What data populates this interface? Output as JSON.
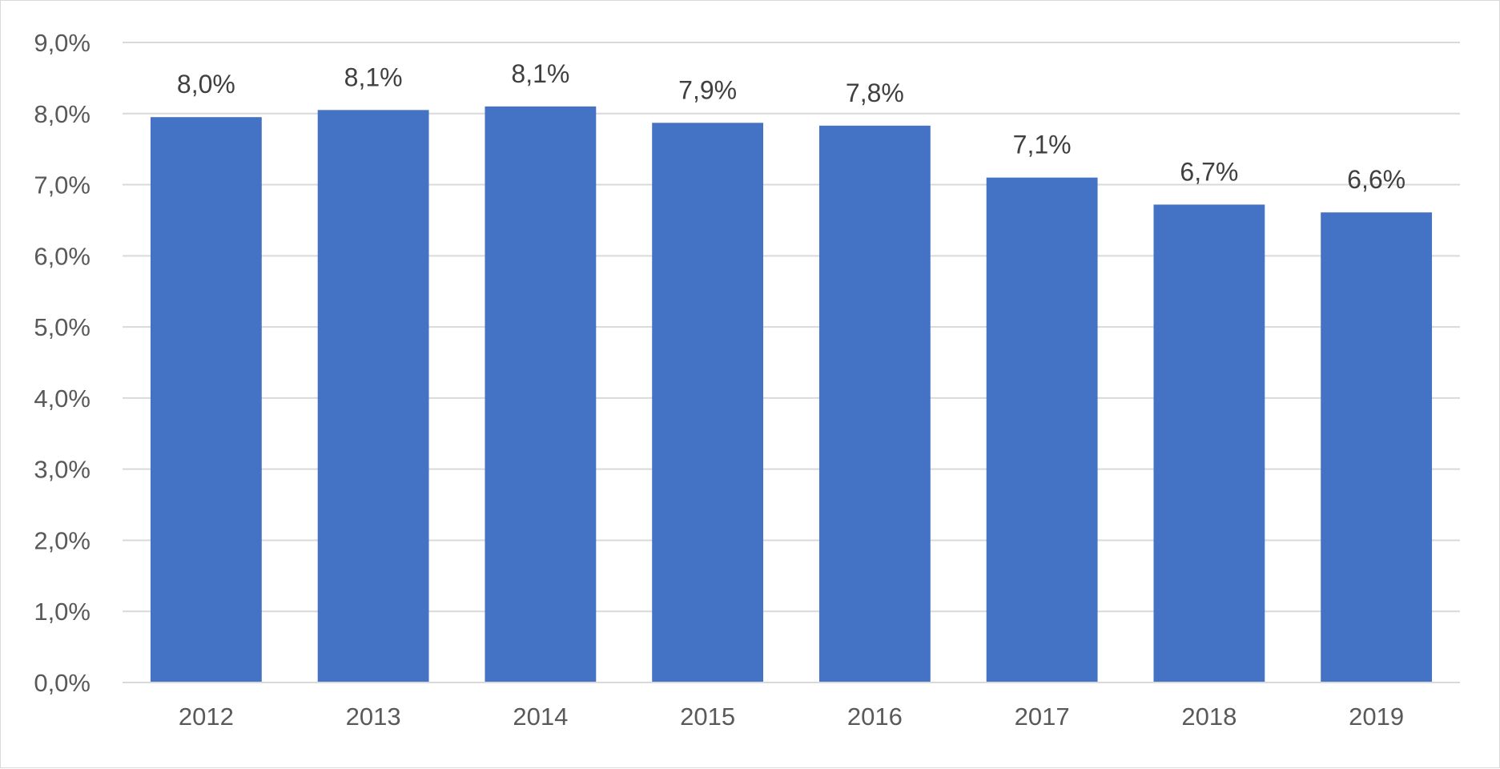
{
  "chart_data": {
    "type": "bar",
    "title": "",
    "xlabel": "",
    "ylabel": "",
    "categories": [
      "2012",
      "2013",
      "2014",
      "2015",
      "2016",
      "2017",
      "2018",
      "2019"
    ],
    "values": [
      7.95,
      8.05,
      8.1,
      7.87,
      7.83,
      7.1,
      6.72,
      6.61
    ],
    "data_labels": [
      "8,0%",
      "8,1%",
      "8,1%",
      "7,9%",
      "7,8%",
      "7,1%",
      "6,7%",
      "6,6%"
    ],
    "ylim": [
      0,
      9
    ],
    "yticks": [
      0,
      1,
      2,
      3,
      4,
      5,
      6,
      7,
      8,
      9
    ],
    "ytick_labels": [
      "0,0%",
      "1,0%",
      "2,0%",
      "3,0%",
      "4,0%",
      "5,0%",
      "6,0%",
      "7,0%",
      "8,0%",
      "9,0%"
    ],
    "grid": true,
    "legend": "none",
    "colors": {
      "bar": "#4472C4",
      "grid": "#d9d9d9",
      "axis_text": "#595959",
      "data_label_text": "#404040"
    }
  }
}
